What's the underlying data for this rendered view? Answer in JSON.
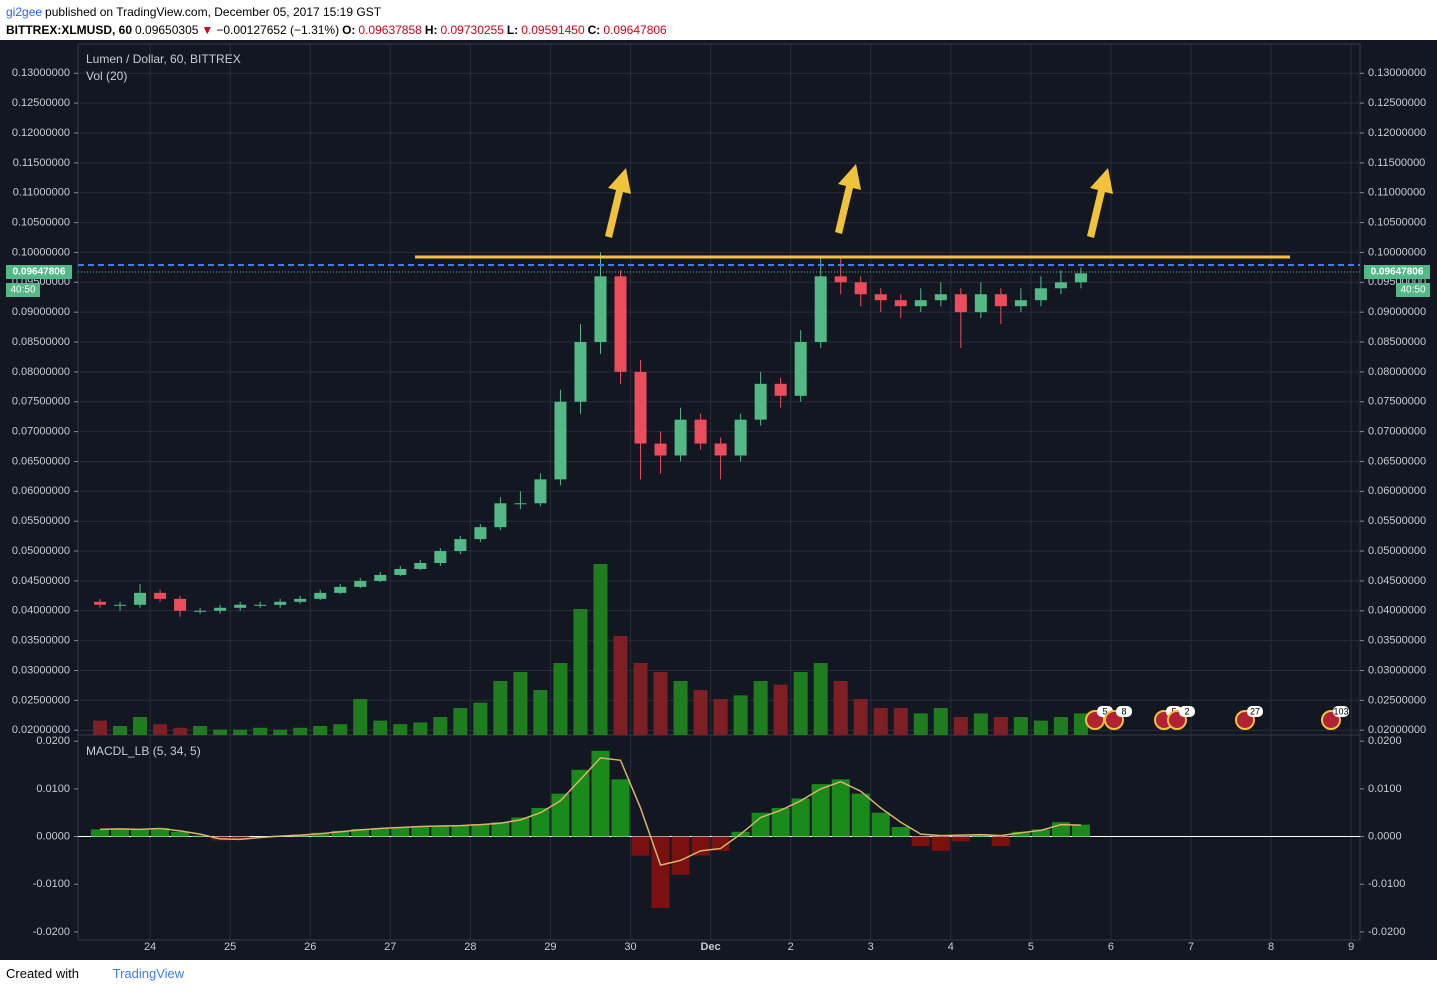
{
  "header": {
    "user": "gi2gee",
    "published": "published on TradingView.com, December 05, 2017 15:19 GST",
    "symbol": "BITTREX:XLMUSD, 60",
    "price": "0.09650305",
    "arrow": "▼",
    "change": "−0.00127652 (−1.31%)",
    "o_label": "O:",
    "o": "0.09637858",
    "h_label": "H:",
    "h": "0.09730255",
    "l_label": "L:",
    "l": "0.09591450",
    "c_label": "C:",
    "c": "0.09647806"
  },
  "chart_data": [
    {
      "type": "candlestick",
      "title": "Lumen / Dollar, 60, BITTREX",
      "subtitle": "Vol (20)",
      "last_label": "0.09647806",
      "countdown": "40:50",
      "up_color": "#53b987",
      "down_color": "#eb4d5c",
      "x": [
        23.25,
        23.5,
        23.75,
        24,
        24.25,
        24.5,
        24.75,
        25,
        25.25,
        25.5,
        25.75,
        26,
        26.25,
        26.5,
        26.75,
        27,
        27.25,
        27.5,
        27.75,
        28,
        28.25,
        28.5,
        28.75,
        29,
        29.25,
        29.5,
        29.75,
        30,
        30.25,
        30.5,
        30.75,
        31,
        31.25,
        31.5,
        31.75,
        32,
        32.25,
        32.5,
        32.75,
        33,
        33.25,
        33.5,
        33.75,
        34,
        34.25,
        34.5,
        34.75,
        35,
        35.25,
        35.5
      ],
      "open": [
        0.0415,
        0.041,
        0.041,
        0.043,
        0.042,
        0.04,
        0.04,
        0.0405,
        0.041,
        0.041,
        0.0415,
        0.042,
        0.043,
        0.044,
        0.045,
        0.046,
        0.047,
        0.048,
        0.05,
        0.052,
        0.054,
        0.058,
        0.058,
        0.062,
        0.075,
        0.085,
        0.096,
        0.08,
        0.068,
        0.066,
        0.072,
        0.068,
        0.066,
        0.072,
        0.078,
        0.076,
        0.085,
        0.096,
        0.095,
        0.093,
        0.092,
        0.091,
        0.092,
        0.093,
        0.09,
        0.093,
        0.091,
        0.092,
        0.094,
        0.095
      ],
      "high": [
        0.042,
        0.0415,
        0.0445,
        0.0435,
        0.0425,
        0.0405,
        0.041,
        0.0415,
        0.0415,
        0.042,
        0.0425,
        0.0435,
        0.0445,
        0.0455,
        0.0465,
        0.0475,
        0.0485,
        0.0505,
        0.0525,
        0.0545,
        0.059,
        0.06,
        0.063,
        0.077,
        0.088,
        0.1,
        0.097,
        0.082,
        0.07,
        0.074,
        0.073,
        0.069,
        0.073,
        0.08,
        0.079,
        0.087,
        0.099,
        0.099,
        0.096,
        0.094,
        0.093,
        0.094,
        0.095,
        0.094,
        0.095,
        0.094,
        0.094,
        0.096,
        0.097,
        0.0975
      ],
      "low": [
        0.0405,
        0.04,
        0.0405,
        0.0415,
        0.039,
        0.0395,
        0.0395,
        0.04,
        0.0405,
        0.0405,
        0.0412,
        0.0418,
        0.0428,
        0.0438,
        0.0448,
        0.0458,
        0.0468,
        0.0475,
        0.0495,
        0.0515,
        0.0535,
        0.057,
        0.0575,
        0.061,
        0.073,
        0.083,
        0.078,
        0.062,
        0.063,
        0.065,
        0.067,
        0.062,
        0.065,
        0.071,
        0.074,
        0.075,
        0.084,
        0.093,
        0.091,
        0.09,
        0.089,
        0.09,
        0.091,
        0.084,
        0.089,
        0.088,
        0.09,
        0.091,
        0.093,
        0.094
      ],
      "close": [
        0.041,
        0.041,
        0.043,
        0.042,
        0.04,
        0.04,
        0.0405,
        0.041,
        0.041,
        0.0415,
        0.042,
        0.043,
        0.044,
        0.045,
        0.046,
        0.047,
        0.048,
        0.05,
        0.052,
        0.054,
        0.058,
        0.058,
        0.062,
        0.075,
        0.085,
        0.096,
        0.08,
        0.068,
        0.066,
        0.072,
        0.068,
        0.066,
        0.072,
        0.078,
        0.076,
        0.085,
        0.096,
        0.095,
        0.093,
        0.092,
        0.091,
        0.092,
        0.093,
        0.09,
        0.093,
        0.091,
        0.092,
        0.094,
        0.095,
        0.0965
      ],
      "xlim": [
        23.1,
        39.11
      ],
      "xticks": [
        24,
        25,
        26,
        27,
        28,
        29,
        30,
        {
          "value": 31,
          "label": "Dec"
        },
        {
          "value": 32,
          "label": "2"
        },
        {
          "value": 33,
          "label": "3"
        },
        {
          "value": 34,
          "label": "4"
        },
        {
          "value": 35,
          "label": "5"
        },
        {
          "value": 36,
          "label": "6"
        },
        {
          "value": 37,
          "label": "7"
        },
        {
          "value": 38,
          "label": "8"
        },
        {
          "value": 39,
          "label": "9"
        }
      ],
      "ylim": [
        0.0192,
        0.1349
      ],
      "yticks": [
        {
          "value": 0.02,
          "label": "0.02000000"
        },
        {
          "value": 0.025,
          "label": "0.02500000"
        },
        {
          "value": 0.03,
          "label": "0.03000000"
        },
        {
          "value": 0.035,
          "label": "0.03500000"
        },
        {
          "value": 0.04,
          "label": "0.04000000"
        },
        {
          "value": 0.045,
          "label": "0.04500000"
        },
        {
          "value": 0.05,
          "label": "0.05000000"
        },
        {
          "value": 0.055,
          "label": "0.05500000"
        },
        {
          "value": 0.06,
          "label": "0.06000000"
        },
        {
          "value": 0.065,
          "label": "0.06500000"
        },
        {
          "value": 0.07,
          "label": "0.07000000"
        },
        {
          "value": 0.075,
          "label": "0.07500000"
        },
        {
          "value": 0.08,
          "label": "0.08000000"
        },
        {
          "value": 0.085,
          "label": "0.08500000"
        },
        {
          "value": 0.09,
          "label": "0.09000000"
        },
        {
          "value": 0.095,
          "label": "0.09500000"
        },
        {
          "value": 0.1,
          "label": "0.10000000"
        },
        {
          "value": 0.105,
          "label": "0.10500000"
        },
        {
          "value": 0.11,
          "label": "0.11000000"
        },
        {
          "value": 0.115,
          "label": "0.11500000"
        },
        {
          "value": 0.12,
          "label": "0.12000000"
        },
        {
          "value": 0.125,
          "label": "0.12500000"
        },
        {
          "value": 0.13,
          "label": "0.13000000"
        }
      ],
      "grid": true,
      "events": [
        "5",
        "8",
        "5",
        "2",
        "27",
        "103"
      ]
    },
    {
      "type": "volume",
      "up_color": "#1f7d1f",
      "down_color": "#7d1f24",
      "ylim": [
        0,
        100
      ],
      "values": [
        8,
        5,
        10,
        6,
        4,
        5,
        3,
        3,
        4,
        3,
        4,
        5,
        6,
        20,
        8,
        6,
        7,
        10,
        15,
        18,
        30,
        35,
        25,
        40,
        70,
        95,
        55,
        40,
        35,
        30,
        25,
        20,
        22,
        30,
        28,
        35,
        40,
        30,
        20,
        15,
        15,
        12,
        15,
        10,
        12,
        10,
        10,
        8,
        10,
        12
      ]
    },
    {
      "type": "macd",
      "title": "MACDL_LB (5, 34, 5)",
      "up_color": "#1a8a1a",
      "down_color": "#7a1010",
      "line_color": "#d8b46a",
      "ylim": [
        -0.0217,
        0.0213
      ],
      "yticks": [
        {
          "value": -0.02,
          "label": "-0.0200"
        },
        {
          "value": -0.01,
          "label": "-0.0100"
        },
        {
          "value": 0,
          "label": "0.0000"
        },
        {
          "value": 0.01,
          "label": "0.0100"
        },
        {
          "value": 0.02,
          "label": "0.0200"
        }
      ],
      "values": [
        0.0015,
        0.0015,
        0.0014,
        0.0018,
        0.001,
        0.0002,
        -0.0008,
        -0.0006,
        0.0,
        0.0002,
        0.0004,
        0.0008,
        0.0012,
        0.0016,
        0.0018,
        0.002,
        0.0022,
        0.0022,
        0.0024,
        0.0026,
        0.003,
        0.004,
        0.006,
        0.009,
        0.014,
        0.018,
        0.012,
        -0.004,
        -0.015,
        -0.008,
        -0.004,
        -0.003,
        0.001,
        0.005,
        0.006,
        0.008,
        0.011,
        0.012,
        0.009,
        0.005,
        0.002,
        -0.002,
        -0.003,
        -0.001,
        0.0005,
        -0.002,
        0.001,
        0.0015,
        0.003,
        0.0025
      ],
      "signal": [
        0.0015,
        0.0016,
        0.0015,
        0.0017,
        0.0012,
        0.0005,
        -0.0005,
        -0.0006,
        -0.0002,
        0.0001,
        0.0003,
        0.0006,
        0.001,
        0.0014,
        0.0017,
        0.0019,
        0.0021,
        0.0022,
        0.0023,
        0.0025,
        0.0028,
        0.0035,
        0.005,
        0.0075,
        0.012,
        0.0165,
        0.016,
        0.006,
        -0.006,
        -0.005,
        -0.003,
        -0.0025,
        0.0005,
        0.004,
        0.0055,
        0.0075,
        0.01,
        0.0115,
        0.0095,
        0.006,
        0.003,
        0.0005,
        0.0002,
        0.0003,
        0.0004,
        0.0002,
        0.0008,
        0.0013,
        0.0025,
        0.0024
      ]
    }
  ],
  "footer": {
    "created": "Created with",
    "brand": "TradingView"
  }
}
